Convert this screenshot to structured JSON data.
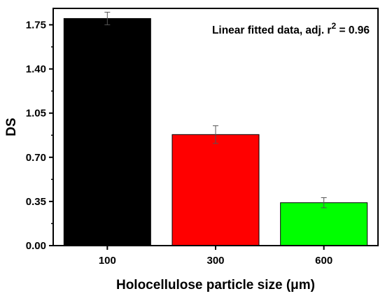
{
  "chart_data": {
    "type": "bar",
    "categories": [
      "100",
      "300",
      "600"
    ],
    "values": [
      1.8,
      0.88,
      0.34
    ],
    "errors": [
      0.05,
      0.07,
      0.04
    ],
    "colors": [
      "#000000",
      "#ff0000",
      "#00ff00"
    ],
    "xlabel": "Holocellulose particle size (μm)",
    "ylabel": "DS",
    "ylim": [
      0,
      1.88
    ],
    "yticks": [
      "0.00",
      "0.35",
      "0.70",
      "1.05",
      "1.40",
      "1.75"
    ],
    "annotation": {
      "prefix": "Linear fitted data, adj. r",
      "superscript": "2",
      "suffix": " = 0.96",
      "placement": "top-right"
    },
    "grid": false,
    "legend": "none"
  }
}
